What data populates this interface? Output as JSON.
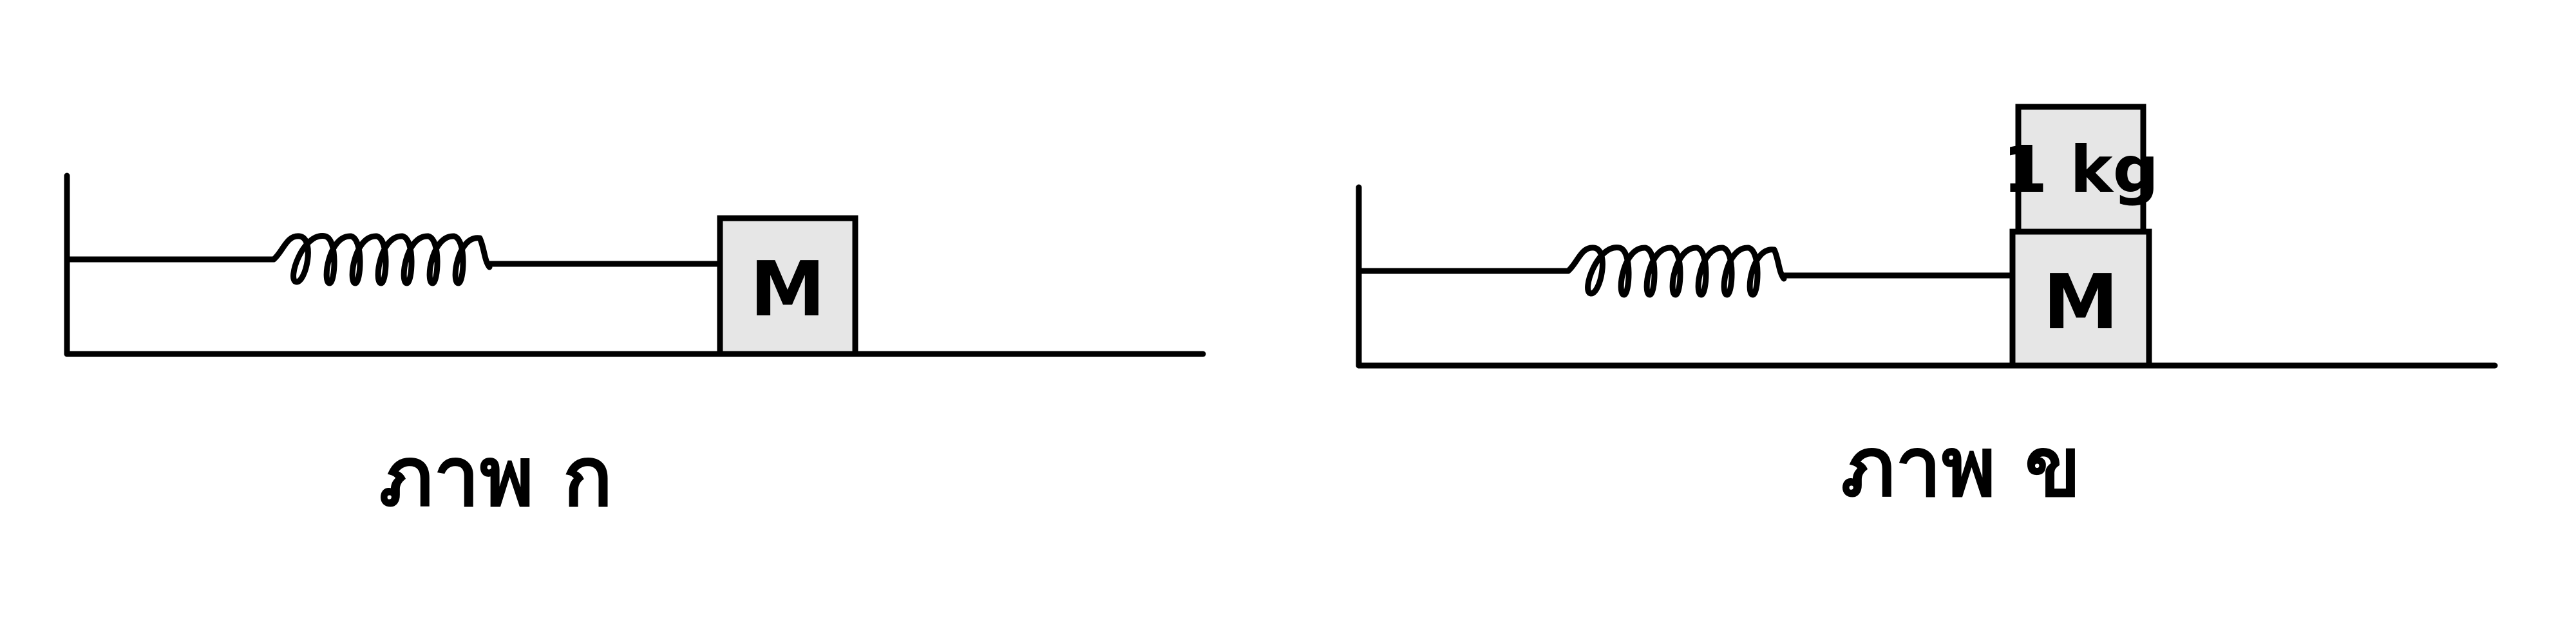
{
  "colors": {
    "ink": "#000000",
    "block_fill": "#e6e6e6",
    "background": "#ffffff"
  },
  "figure_a": {
    "block_label": "M",
    "caption": "ภาพ ก"
  },
  "figure_b": {
    "block_label": "M",
    "added_mass_label": "1 kg",
    "caption": "ภาพ ข"
  }
}
